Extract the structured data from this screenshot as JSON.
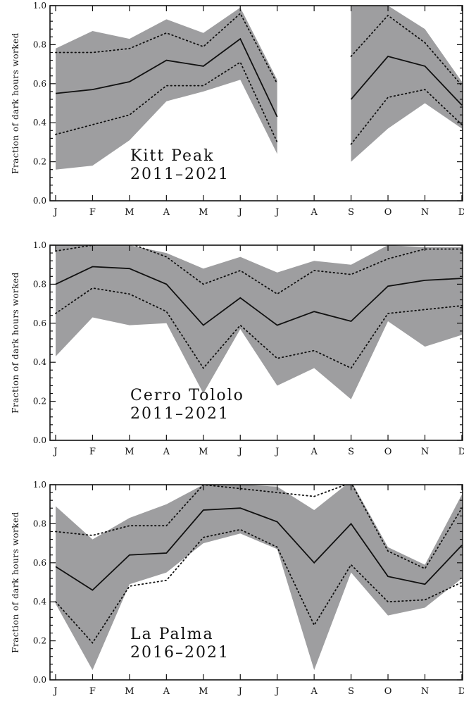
{
  "chart_data": [
    {
      "type": "line",
      "site_label": "Kitt Peak",
      "years_label": "2011–2021",
      "ylabel": "Fraction of dark hours worked",
      "ylim": [
        0,
        1
      ],
      "yticks": [
        "0.0",
        "0.2",
        "0.4",
        "0.6",
        "0.8",
        "1.0"
      ],
      "categories": [
        "J",
        "F",
        "M",
        "A",
        "M",
        "J",
        "J",
        "A",
        "S",
        "O",
        "N",
        "D"
      ],
      "series": [
        {
          "role": "band_max",
          "values": [
            0.78,
            0.87,
            0.83,
            0.93,
            0.86,
            0.99,
            0.62,
            null,
            1.02,
            1.0,
            0.88,
            0.61
          ]
        },
        {
          "role": "band_min",
          "values": [
            0.16,
            0.18,
            0.31,
            0.51,
            0.56,
            0.62,
            0.24,
            null,
            0.2,
            0.37,
            0.5,
            0.37
          ]
        },
        {
          "role": "upper_dotted",
          "values": [
            0.76,
            0.76,
            0.78,
            0.86,
            0.79,
            0.96,
            0.6,
            null,
            0.74,
            0.95,
            0.81,
            0.59
          ]
        },
        {
          "role": "lower_dotted",
          "values": [
            0.34,
            0.39,
            0.44,
            0.59,
            0.59,
            0.71,
            0.3,
            null,
            0.29,
            0.53,
            0.57,
            0.39
          ]
        },
        {
          "role": "mean",
          "values": [
            0.55,
            0.57,
            0.61,
            0.72,
            0.69,
            0.83,
            0.43,
            null,
            0.52,
            0.74,
            0.69,
            0.49
          ]
        }
      ]
    },
    {
      "type": "line",
      "site_label": "Cerro Tololo",
      "years_label": "2011–2021",
      "ylabel": "Fraction of dark hours worked",
      "ylim": [
        0,
        1
      ],
      "yticks": [
        "0.0",
        "0.2",
        "0.4",
        "0.6",
        "0.8",
        "1.0"
      ],
      "categories": [
        "J",
        "F",
        "M",
        "A",
        "M",
        "J",
        "J",
        "A",
        "S",
        "O",
        "N",
        "D"
      ],
      "series": [
        {
          "role": "band_max",
          "values": [
            1.0,
            1.0,
            1.0,
            0.96,
            0.88,
            0.94,
            0.86,
            0.92,
            0.9,
            1.0,
            0.99,
            0.99
          ]
        },
        {
          "role": "band_min",
          "values": [
            0.43,
            0.63,
            0.59,
            0.6,
            0.24,
            0.57,
            0.28,
            0.37,
            0.21,
            0.61,
            0.48,
            0.54
          ]
        },
        {
          "role": "upper_dotted",
          "values": [
            0.97,
            1.0,
            1.01,
            0.94,
            0.8,
            0.87,
            0.75,
            0.87,
            0.85,
            0.93,
            0.98,
            0.98
          ]
        },
        {
          "role": "lower_dotted",
          "values": [
            0.65,
            0.78,
            0.75,
            0.66,
            0.37,
            0.59,
            0.42,
            0.46,
            0.37,
            0.65,
            0.67,
            0.69
          ]
        },
        {
          "role": "mean",
          "values": [
            0.8,
            0.89,
            0.88,
            0.8,
            0.59,
            0.73,
            0.59,
            0.66,
            0.61,
            0.79,
            0.82,
            0.83
          ]
        }
      ]
    },
    {
      "type": "line",
      "site_label": "La Palma",
      "years_label": "2016–2021",
      "ylabel": "Fraction of dark hours worked",
      "ylim": [
        0,
        1
      ],
      "yticks": [
        "0.0",
        "0.2",
        "0.4",
        "0.6",
        "0.8",
        "1.0"
      ],
      "categories": [
        "J",
        "F",
        "M",
        "A",
        "M",
        "J",
        "J",
        "A",
        "S",
        "O",
        "N",
        "D"
      ],
      "series": [
        {
          "role": "band_max",
          "values": [
            0.89,
            0.72,
            0.83,
            0.9,
            1.0,
            1.0,
            0.99,
            0.87,
            1.02,
            0.68,
            0.59,
            0.95
          ]
        },
        {
          "role": "band_min",
          "values": [
            0.39,
            0.05,
            0.49,
            0.55,
            0.7,
            0.75,
            0.67,
            0.05,
            0.55,
            0.33,
            0.37,
            0.52
          ]
        },
        {
          "role": "upper_dotted",
          "values": [
            0.76,
            0.74,
            0.79,
            0.79,
            1.0,
            0.98,
            0.96,
            0.94,
            1.01,
            0.66,
            0.57,
            0.88
          ]
        },
        {
          "role": "lower_dotted",
          "values": [
            0.4,
            0.19,
            0.48,
            0.51,
            0.73,
            0.77,
            0.68,
            0.28,
            0.59,
            0.4,
            0.41,
            0.5
          ]
        },
        {
          "role": "mean",
          "values": [
            0.58,
            0.46,
            0.64,
            0.65,
            0.87,
            0.88,
            0.81,
            0.6,
            0.8,
            0.53,
            0.49,
            0.69
          ]
        }
      ]
    }
  ]
}
